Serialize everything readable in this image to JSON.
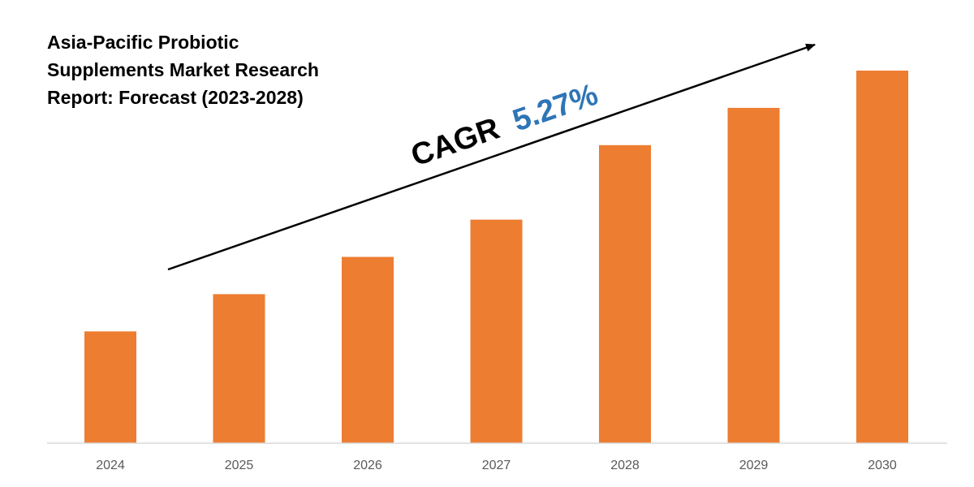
{
  "chart_data": {
    "type": "bar",
    "title_lines": [
      "Asia-Pacific Probiotic",
      "Supplements Market Research",
      "Report: Forecast (2023-2028)"
    ],
    "categories": [
      "2024",
      "2025",
      "2026",
      "2027",
      "2028",
      "2029",
      "2030"
    ],
    "values": [
      30,
      40,
      50,
      60,
      80,
      90,
      100
    ],
    "ylim": [
      0,
      100
    ],
    "xlabel": "",
    "ylabel": "",
    "grid": false,
    "legend": "none",
    "annotation": {
      "prefix": "CAGR",
      "value": "5.27%"
    }
  },
  "colors": {
    "bar": "#ED7D31",
    "cagr_value": "#2E75B6",
    "text": "#000000",
    "tick": "#595959",
    "axis": "#D9D9D9"
  }
}
